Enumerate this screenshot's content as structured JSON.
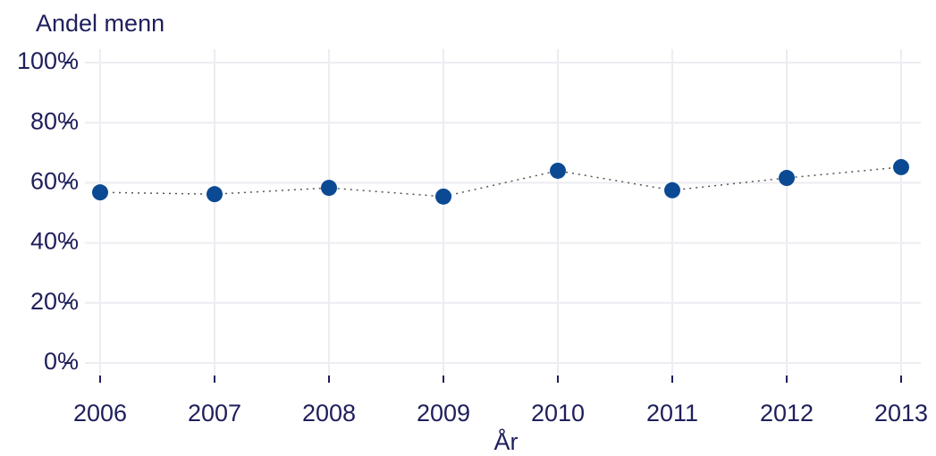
{
  "chart_data": {
    "type": "line",
    "y_label": "Andel menn",
    "x_label": "År",
    "categories": [
      "2006",
      "2007",
      "2008",
      "2009",
      "2010",
      "2011",
      "2012",
      "2013"
    ],
    "series": [
      {
        "name": "Andel menn",
        "color": "#0b4a93",
        "values": [
          56.8,
          56.2,
          58.3,
          55.4,
          64,
          57.5,
          61.6,
          65.2
        ]
      }
    ],
    "ylim": [
      0,
      100
    ],
    "yticks": [
      {
        "value": 0,
        "label": "0%"
      },
      {
        "value": 20,
        "label": "20%"
      },
      {
        "value": 40,
        "label": "40%"
      },
      {
        "value": 60,
        "label": "60%"
      },
      {
        "value": 80,
        "label": "80%"
      },
      {
        "value": 100,
        "label": "100%"
      }
    ],
    "grid": true
  }
}
